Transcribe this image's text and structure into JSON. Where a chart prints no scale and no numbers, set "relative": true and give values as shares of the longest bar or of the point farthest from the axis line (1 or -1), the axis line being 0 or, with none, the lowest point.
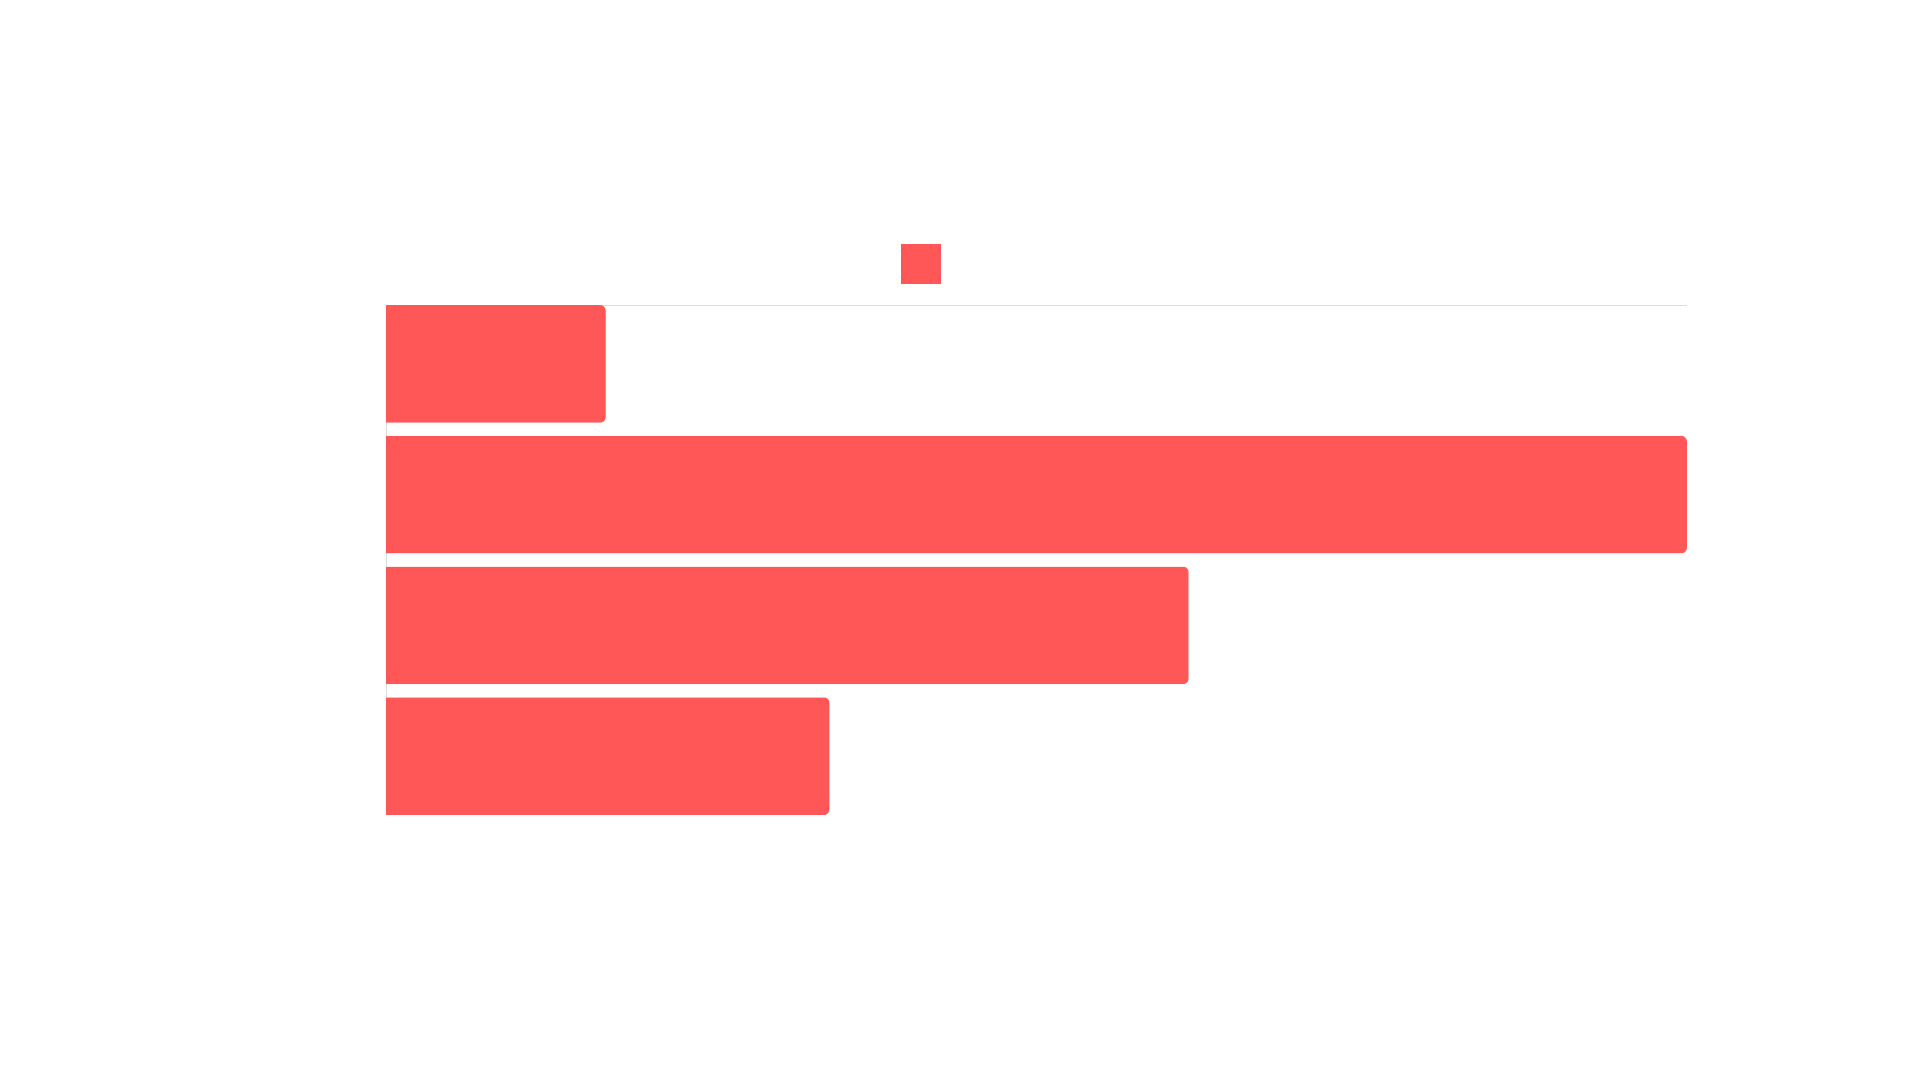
{
  "chart_data": {
    "type": "bar",
    "orientation": "horizontal",
    "relative": true,
    "categories": [
      null,
      null,
      null,
      null
    ],
    "series": [
      {
        "color": "#ff5757",
        "values": [
          0.169,
          1,
          0.617,
          0.341
        ]
      }
    ]
  }
}
